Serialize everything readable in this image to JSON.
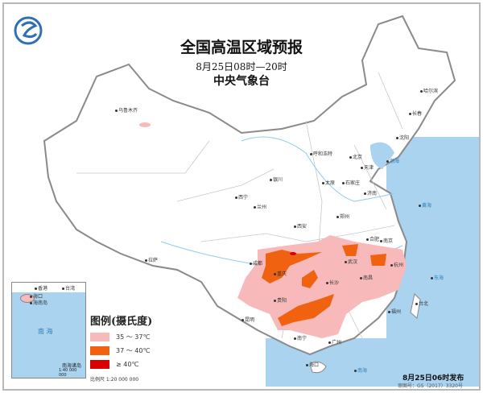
{
  "header": {
    "title": "全国高温区域预报",
    "time_range": "8月25日08时—20时",
    "issuer": "中央气象台",
    "logo": "cma-logo"
  },
  "legend": {
    "title": "图例(摄氏度)",
    "items": [
      {
        "label": "35 ～ 37℃",
        "color": "#f7b9b9"
      },
      {
        "label": "37 ～ 40℃",
        "color": "#f0620f"
      },
      {
        "label": "≥ 40℃",
        "color": "#d80000"
      }
    ]
  },
  "scale": "比例尺  1:20 000 000",
  "inset": {
    "title": "南海诸岛",
    "scale": "1:40 000 000",
    "sea_label": "南  海",
    "labels": [
      "香港",
      "台湾",
      "海口",
      "海南岛"
    ]
  },
  "footer": {
    "issued": "8月25日06时发布",
    "review_no": "审图号：GS（2017）3320号"
  },
  "sea_labels": [
    "渤海",
    "黄海",
    "东海",
    "南海"
  ],
  "cities": [
    {
      "name": "乌鲁木齐"
    },
    {
      "name": "拉萨"
    },
    {
      "name": "西宁"
    },
    {
      "name": "兰州"
    },
    {
      "name": "银川"
    },
    {
      "name": "呼和浩特"
    },
    {
      "name": "北京"
    },
    {
      "name": "天津"
    },
    {
      "name": "石家庄"
    },
    {
      "name": "太原"
    },
    {
      "name": "济南"
    },
    {
      "name": "郑州"
    },
    {
      "name": "西安"
    },
    {
      "name": "成都"
    },
    {
      "name": "重庆"
    },
    {
      "name": "武汉"
    },
    {
      "name": "长沙"
    },
    {
      "name": "南昌"
    },
    {
      "name": "合肥"
    },
    {
      "name": "南京"
    },
    {
      "name": "杭州"
    },
    {
      "name": "贵阳"
    },
    {
      "name": "昆明"
    },
    {
      "name": "南宁"
    },
    {
      "name": "广州"
    },
    {
      "name": "福州"
    },
    {
      "name": "台北"
    },
    {
      "name": "海口"
    },
    {
      "name": "沈阳"
    },
    {
      "name": "长春"
    },
    {
      "name": "哈尔滨"
    }
  ],
  "colors": {
    "ocean": "#a9d3ef",
    "land": "#ffffff",
    "border": "#9a9a9a"
  }
}
